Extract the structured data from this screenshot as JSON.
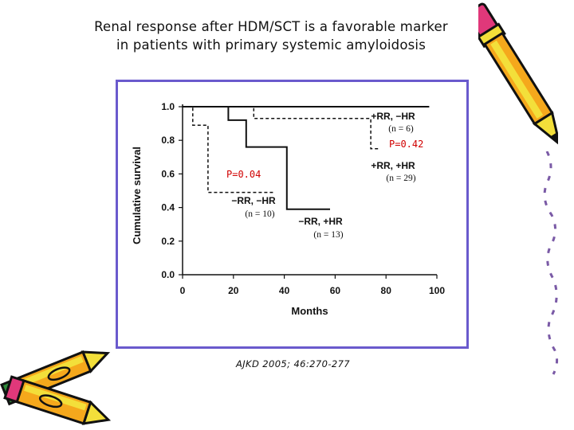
{
  "slide": {
    "title_line1": "Renal response after HDM/SCT is a favorable marker",
    "title_line2": "in patients with primary systemic amyloidosis",
    "citation": "AJKD 2005; 46:270-277"
  },
  "colors": {
    "frame": "#6a5acd",
    "pvalue": "#d00000",
    "series": "#111111",
    "pencil_body": "#f5a81c",
    "pencil_body_light": "#f3df3a",
    "pencil_eraser": "#e0387a",
    "pencil_cap": "#2e8b3a"
  },
  "decorations": [
    "pencil-icon-right",
    "pencils-icon-bottom-left"
  ],
  "chart_data": {
    "type": "line",
    "xlabel": "Months",
    "ylabel": "Cumulative survival",
    "xlim": [
      0,
      100
    ],
    "ylim": [
      0,
      1.0
    ],
    "xticks": [
      0,
      20,
      40,
      60,
      80,
      100
    ],
    "yticks": [
      0.0,
      0.2,
      0.4,
      0.6,
      0.8,
      1.0
    ],
    "xtick_labels": [
      "0",
      "20",
      "40",
      "60",
      "80",
      "100"
    ],
    "ytick_labels": [
      "0.0",
      "0.2",
      "0.4",
      "0.6",
      "0.8",
      "1.0"
    ],
    "grid": false,
    "series": [
      {
        "name": "+RR, +HR",
        "n_label": "(n = 29)",
        "dash": "solid",
        "x": [
          0,
          97
        ],
        "y": [
          1.0,
          1.0
        ]
      },
      {
        "name": "+RR, −HR",
        "n_label": "(n = 6)",
        "dash": "dashed",
        "x": [
          0,
          28,
          28,
          74,
          74,
          77
        ],
        "y": [
          1.0,
          1.0,
          0.93,
          0.93,
          0.75,
          0.75
        ]
      },
      {
        "name": "−RR, +HR",
        "n_label": "(n = 13)",
        "dash": "solid",
        "x": [
          0,
          18,
          18,
          25,
          25,
          41,
          41,
          58
        ],
        "y": [
          1.0,
          1.0,
          0.92,
          0.92,
          0.76,
          0.76,
          0.39,
          0.39
        ]
      },
      {
        "name": "−RR, −HR",
        "n_label": "(n = 10)",
        "dash": "dashed",
        "x": [
          0,
          4,
          4,
          10,
          10,
          36
        ],
        "y": [
          1.0,
          1.0,
          0.89,
          0.89,
          0.49,
          0.49
        ]
      }
    ],
    "annotations": [
      {
        "text": "P=0.42",
        "kind": "pvalue"
      },
      {
        "text": "P=0.04",
        "kind": "pvalue"
      }
    ]
  }
}
